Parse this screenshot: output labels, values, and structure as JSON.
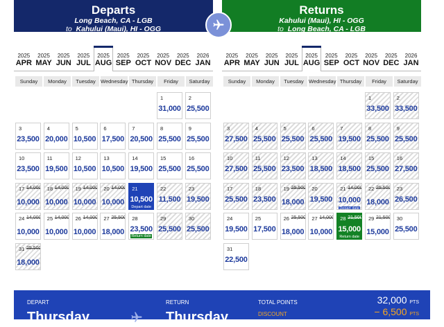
{
  "departs": {
    "title": "Departs",
    "origin": "Long Beach, CA - LGB",
    "to_word": "to",
    "destination": "Kahului (Maui), HI - OGG"
  },
  "returns": {
    "title": "Returns",
    "origin": "Kahului (Maui), HI - OGG",
    "to_word": "to",
    "destination": "Long Beach, CA - LGB"
  },
  "months": [
    {
      "year": "2025",
      "month": "APR"
    },
    {
      "year": "2025",
      "month": "MAY"
    },
    {
      "year": "2025",
      "month": "JUN"
    },
    {
      "year": "2025",
      "month": "JUL"
    },
    {
      "year": "2025",
      "month": "AUG",
      "selected": true
    },
    {
      "year": "2025",
      "month": "SEP"
    },
    {
      "year": "2025",
      "month": "OCT"
    },
    {
      "year": "2025",
      "month": "NOV"
    },
    {
      "year": "2025",
      "month": "DEC"
    },
    {
      "year": "2026",
      "month": "JAN"
    }
  ],
  "weekdays": [
    "Sunday",
    "Monday",
    "Tuesday",
    "Wednesday",
    "Thursday",
    "Friday",
    "Saturday"
  ],
  "depart_days": [
    {
      "d": "1",
      "price": "31,000",
      "col": 5,
      "row": 0
    },
    {
      "d": "2",
      "price": "25,500",
      "col": 6,
      "row": 0
    },
    {
      "d": "3",
      "price": "23,500",
      "col": 0,
      "row": 1
    },
    {
      "d": "4",
      "price": "20,000",
      "col": 1,
      "row": 1
    },
    {
      "d": "5",
      "price": "10,500",
      "col": 2,
      "row": 1
    },
    {
      "d": "6",
      "price": "17,500",
      "col": 3,
      "row": 1
    },
    {
      "d": "7",
      "price": "20,500",
      "col": 4,
      "row": 1
    },
    {
      "d": "8",
      "price": "25,500",
      "col": 5,
      "row": 1
    },
    {
      "d": "9",
      "price": "25,500",
      "col": 6,
      "row": 1
    },
    {
      "d": "10",
      "price": "23,500",
      "col": 0,
      "row": 2
    },
    {
      "d": "11",
      "price": "19,500",
      "col": 1,
      "row": 2
    },
    {
      "d": "12",
      "price": "10,500",
      "col": 2,
      "row": 2
    },
    {
      "d": "13",
      "price": "10,500",
      "col": 3,
      "row": 2
    },
    {
      "d": "14",
      "price": "19,500",
      "col": 4,
      "row": 2
    },
    {
      "d": "15",
      "price": "25,500",
      "col": 5,
      "row": 2
    },
    {
      "d": "16",
      "price": "25,500",
      "col": 6,
      "row": 2
    },
    {
      "d": "17",
      "old": "14,000",
      "price": "10,000",
      "col": 0,
      "row": 3,
      "hatch": true
    },
    {
      "d": "18",
      "old": "14,000",
      "price": "10,000",
      "col": 1,
      "row": 3,
      "hatch": true
    },
    {
      "d": "19",
      "old": "14,000",
      "price": "10,000",
      "col": 2,
      "row": 3,
      "hatch": true
    },
    {
      "d": "20",
      "old": "14,000",
      "price": "10,000",
      "col": 3,
      "row": 3,
      "hatch": true
    },
    {
      "d": "21",
      "price": "10,500",
      "col": 4,
      "row": 3,
      "state": "depart",
      "tag": "Depart date"
    },
    {
      "d": "22",
      "price": "11,500",
      "col": 5,
      "row": 3,
      "hatch": true
    },
    {
      "d": "23",
      "price": "19,500",
      "col": 6,
      "row": 3,
      "hatch": true
    },
    {
      "d": "24",
      "old": "14,000",
      "price": "10,000",
      "col": 0,
      "row": 4
    },
    {
      "d": "25",
      "old": "14,000",
      "price": "10,000",
      "col": 1,
      "row": 4
    },
    {
      "d": "26",
      "old": "14,000",
      "price": "10,000",
      "col": 2,
      "row": 4
    },
    {
      "d": "27",
      "old": "25,500",
      "price": "18,000",
      "col": 3,
      "row": 4
    },
    {
      "d": "28",
      "price": "23,500",
      "col": 4,
      "row": 4,
      "tag": "Return date",
      "tagColor": "green"
    },
    {
      "d": "29",
      "price": "25,500",
      "col": 5,
      "row": 4,
      "hatch": true
    },
    {
      "d": "30",
      "price": "25,500",
      "col": 6,
      "row": 4,
      "hatch": true
    },
    {
      "d": "31",
      "old": "25,500",
      "price": "18,000",
      "col": 0,
      "row": 5,
      "hatch": true
    }
  ],
  "return_days": [
    {
      "d": "1",
      "price": "33,500",
      "col": 5,
      "row": 0,
      "hatch": true
    },
    {
      "d": "2",
      "price": "33,500",
      "col": 6,
      "row": 0,
      "hatch": true
    },
    {
      "d": "3",
      "price": "27,500",
      "col": 0,
      "row": 1,
      "hatch": true
    },
    {
      "d": "4",
      "price": "25,500",
      "col": 1,
      "row": 1,
      "hatch": true
    },
    {
      "d": "5",
      "price": "25,500",
      "col": 2,
      "row": 1,
      "hatch": true
    },
    {
      "d": "6",
      "price": "25,500",
      "col": 3,
      "row": 1,
      "hatch": true
    },
    {
      "d": "7",
      "price": "19,500",
      "col": 4,
      "row": 1,
      "hatch": true
    },
    {
      "d": "8",
      "price": "25,500",
      "col": 5,
      "row": 1,
      "hatch": true
    },
    {
      "d": "9",
      "price": "25,500",
      "col": 6,
      "row": 1,
      "hatch": true
    },
    {
      "d": "10",
      "price": "27,500",
      "col": 0,
      "row": 2,
      "hatch": true
    },
    {
      "d": "11",
      "price": "25,500",
      "col": 1,
      "row": 2,
      "hatch": true
    },
    {
      "d": "12",
      "price": "23,500",
      "col": 2,
      "row": 2,
      "hatch": true
    },
    {
      "d": "13",
      "price": "18,500",
      "col": 3,
      "row": 2,
      "hatch": true
    },
    {
      "d": "14",
      "price": "18,500",
      "col": 4,
      "row": 2,
      "hatch": true
    },
    {
      "d": "15",
      "price": "25,500",
      "col": 5,
      "row": 2,
      "hatch": true
    },
    {
      "d": "16",
      "price": "27,500",
      "col": 6,
      "row": 2,
      "hatch": true
    },
    {
      "d": "17",
      "price": "25,500",
      "col": 0,
      "row": 3,
      "hatch": true
    },
    {
      "d": "18",
      "price": "23,500",
      "col": 1,
      "row": 3,
      "hatch": true
    },
    {
      "d": "19",
      "old": "25,500",
      "price": "18,000",
      "col": 2,
      "row": 3,
      "hatch": true
    },
    {
      "d": "20",
      "price": "19,500",
      "col": 3,
      "row": 3,
      "hatch": true
    },
    {
      "d": "21",
      "old": "14,000",
      "price": "10,000",
      "col": 4,
      "row": 3,
      "hatch": true,
      "tag": "Depart date",
      "tagColor": "blue"
    },
    {
      "d": "22",
      "old": "25,500",
      "price": "18,000",
      "col": 5,
      "row": 3,
      "hatch": true
    },
    {
      "d": "23",
      "price": "26,500",
      "col": 6,
      "row": 3,
      "hatch": true
    },
    {
      "d": "24",
      "price": "19,500",
      "col": 0,
      "row": 4
    },
    {
      "d": "25",
      "price": "17,500",
      "col": 1,
      "row": 4
    },
    {
      "d": "26",
      "old": "25,500",
      "price": "18,000",
      "col": 2,
      "row": 4
    },
    {
      "d": "27",
      "old": "14,000",
      "price": "10,000",
      "col": 3,
      "row": 4
    },
    {
      "d": "28",
      "old": "21,500",
      "price": "15,000",
      "col": 4,
      "row": 4,
      "state": "return",
      "tag": "Return date"
    },
    {
      "d": "29",
      "old": "21,500",
      "price": "15,000",
      "col": 5,
      "row": 4
    },
    {
      "d": "30",
      "price": "25,500",
      "col": 6,
      "row": 4
    },
    {
      "d": "31",
      "price": "22,500",
      "col": 0,
      "row": 5
    }
  ],
  "summary": {
    "depart_label": "DEPART",
    "depart_day": "Thursday",
    "return_label": "RETURN",
    "return_day": "Thursday",
    "total_label": "TOTAL POINTS",
    "total_value": "32,000",
    "total_unit": "PTS",
    "discount_label": "DISCOUNT",
    "discount_value": "− 6,500",
    "discount_unit": "PTS"
  },
  "colors": {
    "departs_header": "#14286a",
    "returns_header": "#127d24",
    "price_blue": "#1d3a9c",
    "selected_blue": "#1f43b6",
    "selected_green": "#138225",
    "discount_orange": "#f5a623"
  }
}
